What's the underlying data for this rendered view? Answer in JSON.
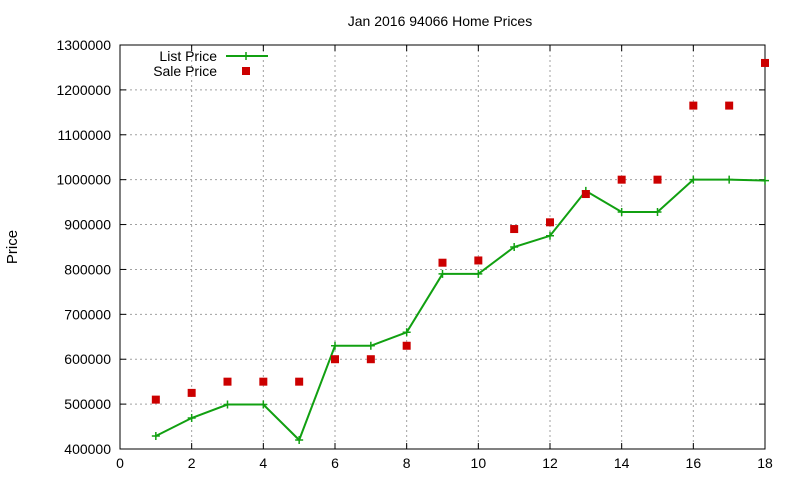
{
  "chart_data": {
    "type": "line",
    "title": "Jan 2016 94066 Home Prices",
    "xlabel": "",
    "ylabel": "Price",
    "xlim": [
      0,
      18
    ],
    "ylim": [
      400000,
      1300000
    ],
    "xticks": [
      0,
      2,
      4,
      6,
      8,
      10,
      12,
      14,
      16,
      18
    ],
    "yticks": [
      400000,
      500000,
      600000,
      700000,
      800000,
      900000,
      1000000,
      1100000,
      1200000,
      1300000
    ],
    "grid": true,
    "legend_position": "top-left",
    "series": [
      {
        "name": "List Price",
        "style": "line+cross",
        "color": "#11a011",
        "x": [
          1,
          2,
          3,
          4,
          5,
          6,
          7,
          8,
          9,
          10,
          11,
          12,
          13,
          14,
          15,
          16,
          17,
          18
        ],
        "values": [
          429000,
          469000,
          499000,
          499000,
          420000,
          630000,
          630000,
          660000,
          790000,
          790000,
          850000,
          875000,
          975000,
          928000,
          928000,
          1000000,
          1000000,
          998000
        ]
      },
      {
        "name": "Sale Price",
        "style": "square",
        "color": "#cc0000",
        "x": [
          1,
          2,
          3,
          4,
          5,
          6,
          7,
          8,
          9,
          10,
          11,
          12,
          13,
          14,
          15,
          16,
          17,
          18
        ],
        "values": [
          510000,
          525000,
          550000,
          550000,
          550000,
          600000,
          600000,
          630000,
          815000,
          820000,
          890000,
          905000,
          968000,
          1000000,
          1000000,
          1165000,
          1165000,
          1260000
        ]
      }
    ]
  }
}
